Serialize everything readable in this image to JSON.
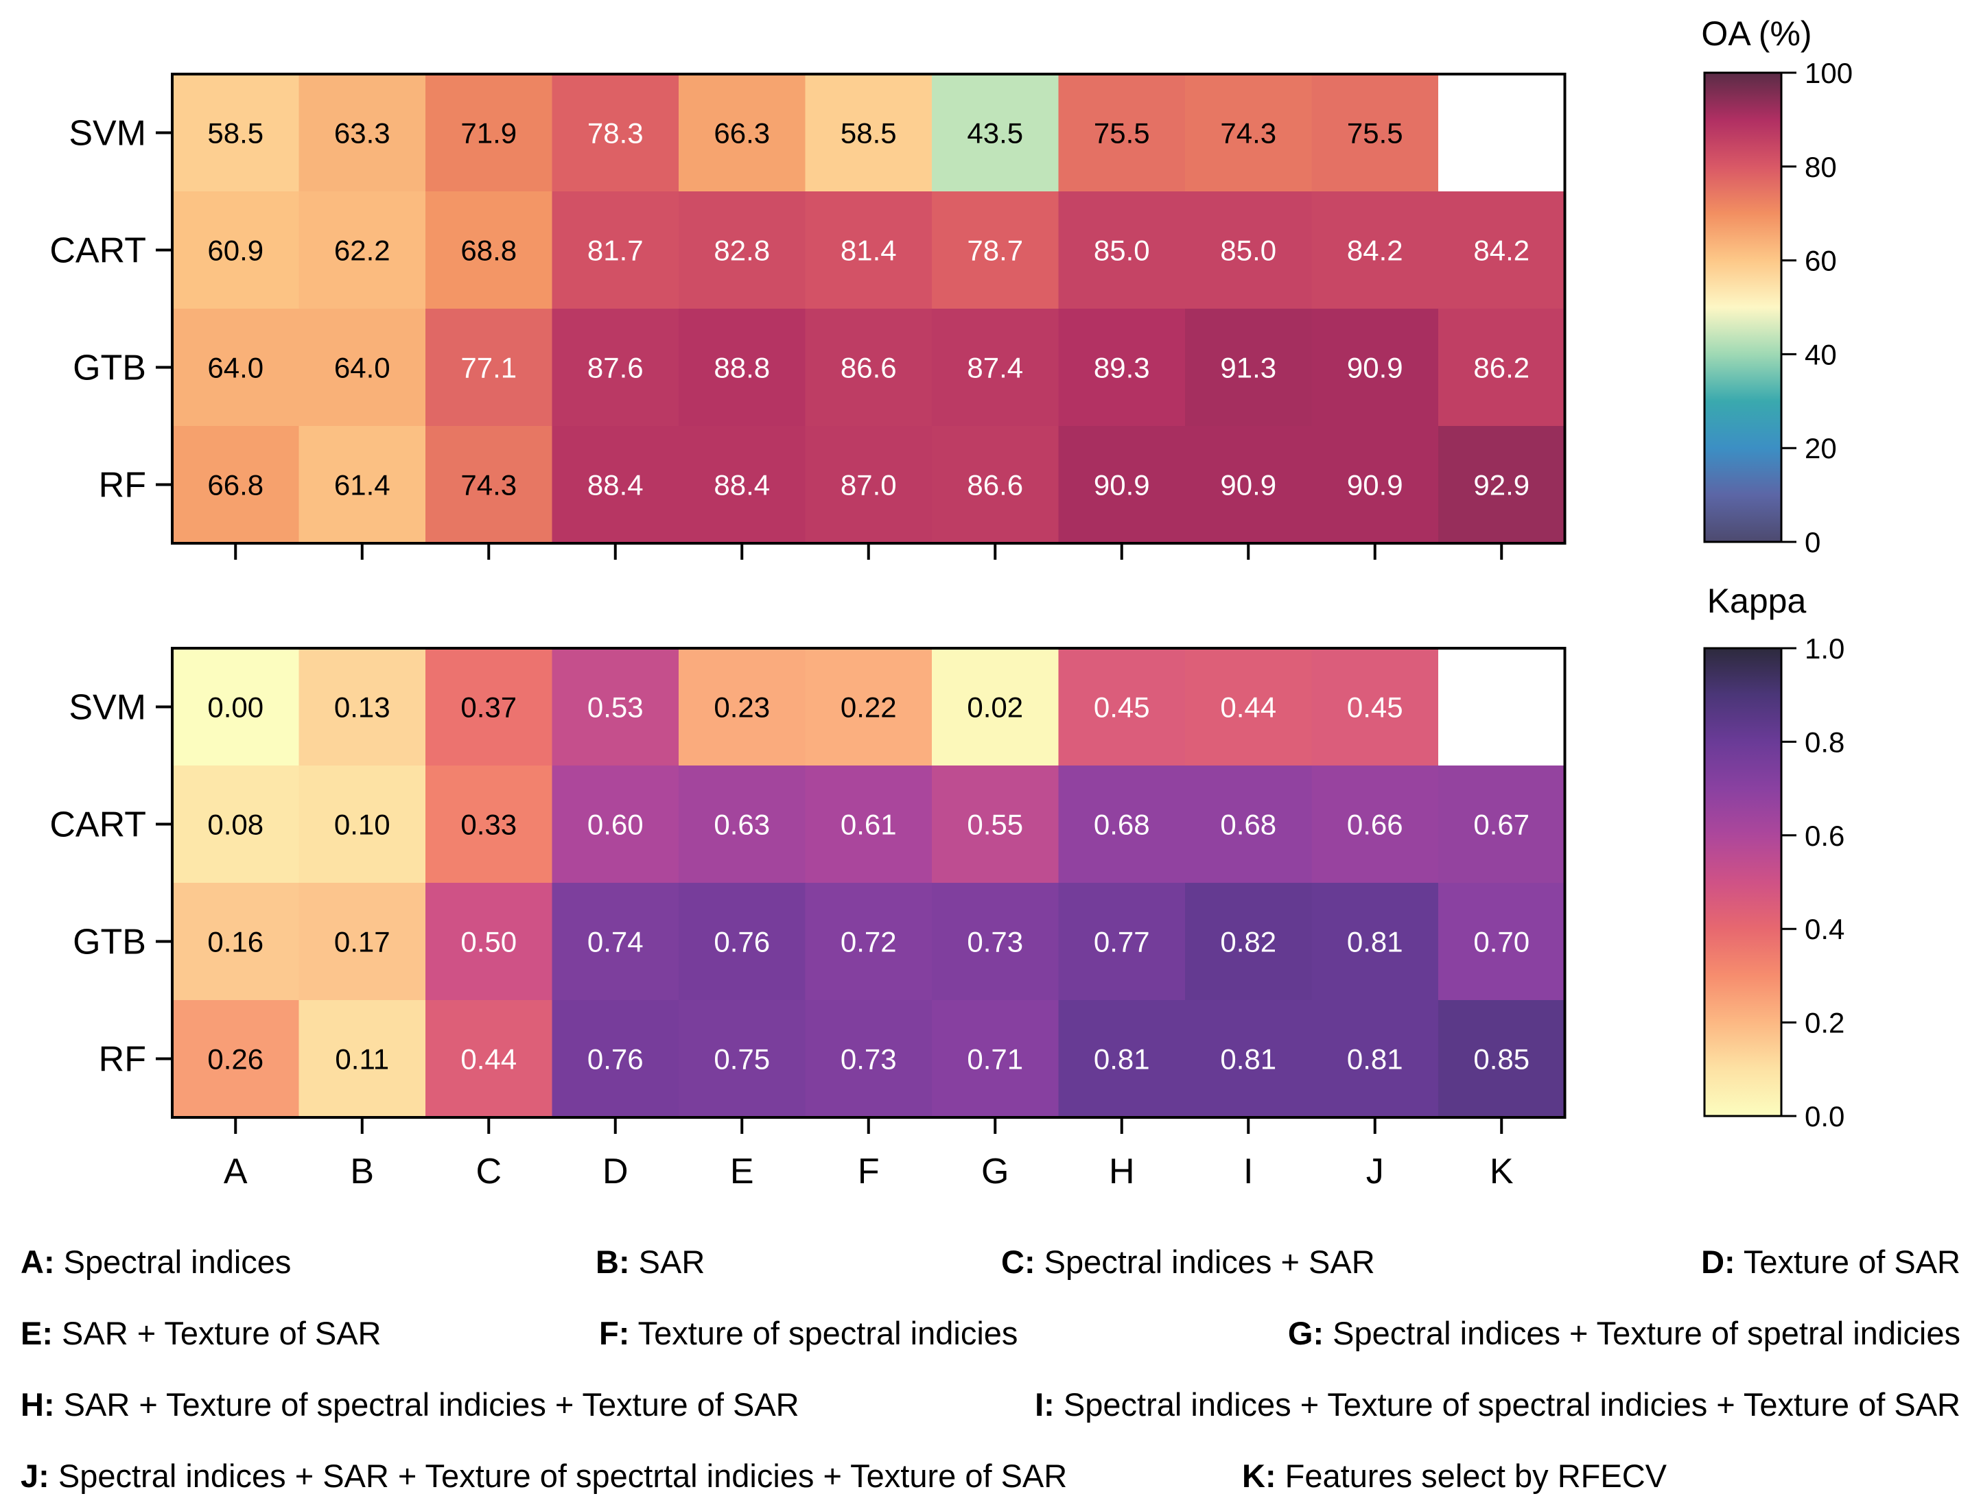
{
  "chart_data": [
    {
      "type": "heatmap",
      "id": "oa",
      "colorbar_title": "OA (%)",
      "rows": [
        "SVM",
        "CART",
        "GTB",
        "RF"
      ],
      "columns": [
        "A",
        "B",
        "C",
        "D",
        "E",
        "F",
        "G",
        "H",
        "I",
        "J",
        "K"
      ],
      "values": [
        [
          58.5,
          63.3,
          71.9,
          78.3,
          66.3,
          58.5,
          43.5,
          75.5,
          74.3,
          75.5,
          null
        ],
        [
          60.9,
          62.2,
          68.8,
          81.7,
          82.8,
          81.4,
          78.7,
          85.0,
          85.0,
          84.2,
          84.2
        ],
        [
          64.0,
          64.0,
          77.1,
          87.6,
          88.8,
          86.6,
          87.4,
          89.3,
          91.3,
          90.9,
          86.2
        ],
        [
          66.8,
          61.4,
          74.3,
          88.4,
          88.4,
          87.0,
          86.6,
          90.9,
          90.9,
          90.9,
          92.9
        ]
      ],
      "labels": [
        [
          "58.5",
          "63.3",
          "71.9",
          "78.3",
          "66.3",
          "58.5",
          "43.5",
          "75.5",
          "74.3",
          "75.5",
          ""
        ],
        [
          "60.9",
          "62.2",
          "68.8",
          "81.7",
          "82.8",
          "81.4",
          "78.7",
          "85.0",
          "85.0",
          "84.2",
          "84.2"
        ],
        [
          "64.0",
          "64.0",
          "77.1",
          "87.6",
          "88.8",
          "86.6",
          "87.4",
          "89.3",
          "91.3",
          "90.9",
          "86.2"
        ],
        [
          "66.8",
          "61.4",
          "74.3",
          "88.4",
          "88.4",
          "87.0",
          "86.6",
          "90.9",
          "90.9",
          "90.9",
          "92.9"
        ]
      ],
      "vmin": 0,
      "vmax": 100,
      "colorbar_ticks": [
        0,
        20,
        40,
        60,
        80,
        100
      ],
      "colorbar_tick_labels": [
        "0",
        "20",
        "40",
        "60",
        "80",
        "100"
      ],
      "colormap": "spectral-diverging",
      "colormap_stops": [
        [
          0.0,
          "#4d4a6f"
        ],
        [
          0.1,
          "#5c66a6"
        ],
        [
          0.2,
          "#3c8fc4"
        ],
        [
          0.3,
          "#3aa9ae"
        ],
        [
          0.4,
          "#9fd9b4"
        ],
        [
          0.5,
          "#fdf7c5"
        ],
        [
          0.6,
          "#fdc888"
        ],
        [
          0.7,
          "#f28f61"
        ],
        [
          0.8,
          "#d95866"
        ],
        [
          0.9,
          "#b02f63"
        ],
        [
          1.0,
          "#5a2c46"
        ]
      ],
      "show_x_tick_labels": false
    },
    {
      "type": "heatmap",
      "id": "kappa",
      "colorbar_title": "Kappa",
      "rows": [
        "SVM",
        "CART",
        "GTB",
        "RF"
      ],
      "columns": [
        "A",
        "B",
        "C",
        "D",
        "E",
        "F",
        "G",
        "H",
        "I",
        "J",
        "K"
      ],
      "values": [
        [
          0.0,
          0.13,
          0.37,
          0.53,
          0.23,
          0.22,
          0.02,
          0.45,
          0.44,
          0.45,
          null
        ],
        [
          0.08,
          0.1,
          0.33,
          0.6,
          0.63,
          0.61,
          0.55,
          0.68,
          0.68,
          0.66,
          0.67
        ],
        [
          0.16,
          0.17,
          0.5,
          0.74,
          0.76,
          0.72,
          0.73,
          0.77,
          0.82,
          0.81,
          0.7
        ],
        [
          0.26,
          0.11,
          0.44,
          0.76,
          0.75,
          0.73,
          0.71,
          0.81,
          0.81,
          0.81,
          0.85
        ]
      ],
      "labels": [
        [
          "0.00",
          "0.13",
          "0.37",
          "0.53",
          "0.23",
          "0.22",
          "0.02",
          "0.45",
          "0.44",
          "0.45",
          ""
        ],
        [
          "0.08",
          "0.10",
          "0.33",
          "0.60",
          "0.63",
          "0.61",
          "0.55",
          "0.68",
          "0.68",
          "0.66",
          "0.67"
        ],
        [
          "0.16",
          "0.17",
          "0.50",
          "0.74",
          "0.76",
          "0.72",
          "0.73",
          "0.77",
          "0.82",
          "0.81",
          "0.70"
        ],
        [
          "0.26",
          "0.11",
          "0.44",
          "0.76",
          "0.75",
          "0.73",
          "0.71",
          "0.81",
          "0.81",
          "0.81",
          "0.85"
        ]
      ],
      "vmin": 0,
      "vmax": 1,
      "colorbar_ticks": [
        0.0,
        0.2,
        0.4,
        0.6,
        0.8,
        1.0
      ],
      "colorbar_tick_labels": [
        "0.0",
        "0.2",
        "0.4",
        "0.6",
        "0.8",
        "1.0"
      ],
      "colormap": "magma-reversed",
      "colormap_stops": [
        [
          0.0,
          "#fcfdbf"
        ],
        [
          0.1,
          "#fde2a4"
        ],
        [
          0.2,
          "#fcb883"
        ],
        [
          0.3,
          "#f68d6e"
        ],
        [
          0.4,
          "#e7686f"
        ],
        [
          0.5,
          "#cf5286"
        ],
        [
          0.6,
          "#ad479b"
        ],
        [
          0.7,
          "#8a41a1"
        ],
        [
          0.8,
          "#6a3b97"
        ],
        [
          0.9,
          "#4b3678"
        ],
        [
          1.0,
          "#2d2a3d"
        ]
      ],
      "show_x_tick_labels": true
    }
  ],
  "legend": [
    {
      "key": "A:",
      "text": " Spectral indices"
    },
    {
      "key": "B:",
      "text": "  SAR"
    },
    {
      "key": "C:",
      "text": " Spectral indices + SAR"
    },
    {
      "key": "D:",
      "text": " Texture of SAR"
    },
    {
      "key": "E:",
      "text": " SAR + Texture of SAR"
    },
    {
      "key": "F:",
      "text": " Texture of spectral indicies"
    },
    {
      "key": "G:",
      "text": " Spectral indices + Texture of spetral indicies"
    },
    {
      "key": "H:",
      "text": " SAR + Texture of spectral indicies + Texture of SAR"
    },
    {
      "key": "I:",
      "text": " Spectral indices + Texture of spectral indicies + Texture of SAR"
    },
    {
      "key": "J:",
      "text": " Spectral indices + SAR + Texture of spectrtal indicies + Texture of SAR"
    },
    {
      "key": "K:",
      "text": " Features select by RFECV"
    }
  ]
}
